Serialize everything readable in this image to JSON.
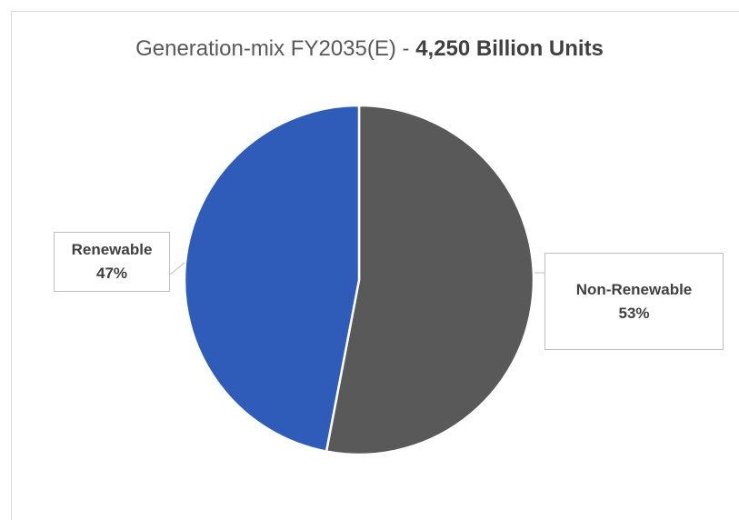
{
  "chart_data": {
    "type": "pie",
    "title": "Generation-mix FY2035(E) - ",
    "title_bold": "4,250 Billion Units",
    "slices": [
      {
        "label": "Non-Renewable",
        "value": 53,
        "value_label": "53%",
        "color": "#595959"
      },
      {
        "label": "Renewable",
        "value": 47,
        "value_label": "47%",
        "color": "#2e5cb8"
      }
    ],
    "start_angle": "top",
    "direction": "clockwise",
    "legend": "none"
  }
}
